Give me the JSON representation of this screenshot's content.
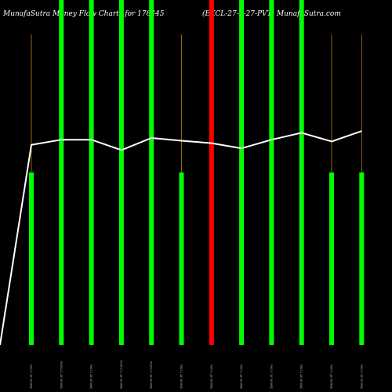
{
  "title_left": "MunafaSutra  Money Flow  Charts for 176445",
  "title_right": "(EXCL-27-4-27-PVT) MunafaSutra.com",
  "colors": {
    "background": "#000000",
    "up": "#00ff00",
    "down": "#ff0000",
    "line": "#ffffff",
    "wick": "#b8860b"
  },
  "chart_data": {
    "type": "bar",
    "categories": [
      "18M-90 ST Y (0%)",
      "18M-90 ST Y (100%)",
      "18M-90 ST Y (0%)",
      "18M-90 ST Y (-100%)",
      "18M-90 ST Y (100%)",
      "18M-90 ST Y (0%)",
      "18M-90 ST Y (0%)",
      "18M-90 ST Y (0%)",
      "18M-90 ST Y (0%)",
      "18M-90 ST Y (0%)",
      "18M-90 ST Y (0%)",
      "18M-90 ST Y (0%)"
    ],
    "ylim": [
      0,
      100
    ],
    "series": [
      {
        "values": [
          50,
          100,
          100,
          100,
          100,
          50,
          100,
          100,
          100,
          100,
          50,
          50
        ],
        "direction": [
          "up",
          "up",
          "up",
          "up",
          "up",
          "up",
          "down",
          "up",
          "up",
          "up",
          "up",
          "up"
        ],
        "wick_high": [
          90,
          100,
          100,
          100,
          100,
          90,
          100,
          100,
          100,
          100,
          90,
          90
        ]
      },
      {
        "line_y": [
          0,
          58,
          59.5,
          59.5,
          56.5,
          60,
          59.2,
          58.5,
          57,
          59.5,
          61.5,
          59,
          62
        ]
      }
    ]
  }
}
